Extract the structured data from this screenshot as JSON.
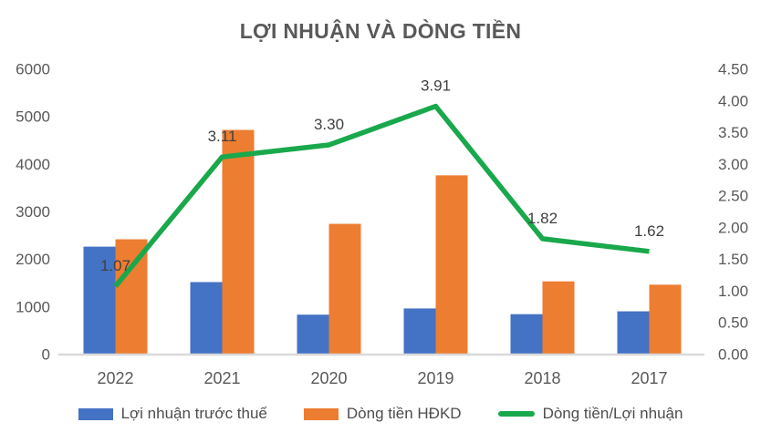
{
  "chart_data": {
    "type": "combo",
    "title": "LỢI NHUẬN VÀ DÒNG TIỀN",
    "categories": [
      "2022",
      "2021",
      "2020",
      "2019",
      "2018",
      "2017"
    ],
    "series": [
      {
        "name": "Lợi nhuận trước thuế",
        "type": "bar",
        "axis": "left",
        "color": "#4472C4",
        "values": [
          2260,
          1515,
          830,
          960,
          840,
          900
        ]
      },
      {
        "name": "Dòng tiền HĐKD",
        "type": "bar",
        "axis": "left",
        "color": "#ED7D31",
        "values": [
          2415,
          4715,
          2740,
          3760,
          1530,
          1460
        ]
      },
      {
        "name": "Dòng tiền/Lợi nhuận",
        "type": "line",
        "axis": "right",
        "color": "#19A84C",
        "values": [
          1.07,
          3.11,
          3.3,
          3.91,
          1.82,
          1.62
        ],
        "labels": [
          "1.07",
          "3.11",
          "3.30",
          "3.91",
          "1.82",
          "1.62"
        ]
      }
    ],
    "left_axis": {
      "min": 0,
      "max": 6000,
      "step": 1000,
      "ticks": [
        "0",
        "1000",
        "2000",
        "3000",
        "4000",
        "5000",
        "6000"
      ]
    },
    "right_axis": {
      "min": 0,
      "max": 4.5,
      "step": 0.5,
      "ticks": [
        "0.00",
        "0.50",
        "1.00",
        "1.50",
        "2.00",
        "2.50",
        "3.00",
        "3.50",
        "4.00",
        "4.50"
      ]
    },
    "grid": false,
    "legend_position": "bottom"
  },
  "colors": {
    "bar_blue": "#4472C4",
    "bar_orange": "#ED7D31",
    "line_green": "#19A84C",
    "title_text": "#595959",
    "axis_text": "#595959",
    "data_label_text": "#404040",
    "legend_text": "#4d4d4d",
    "axis_line": "#D9D9D9",
    "background": "#FFFFFF"
  }
}
